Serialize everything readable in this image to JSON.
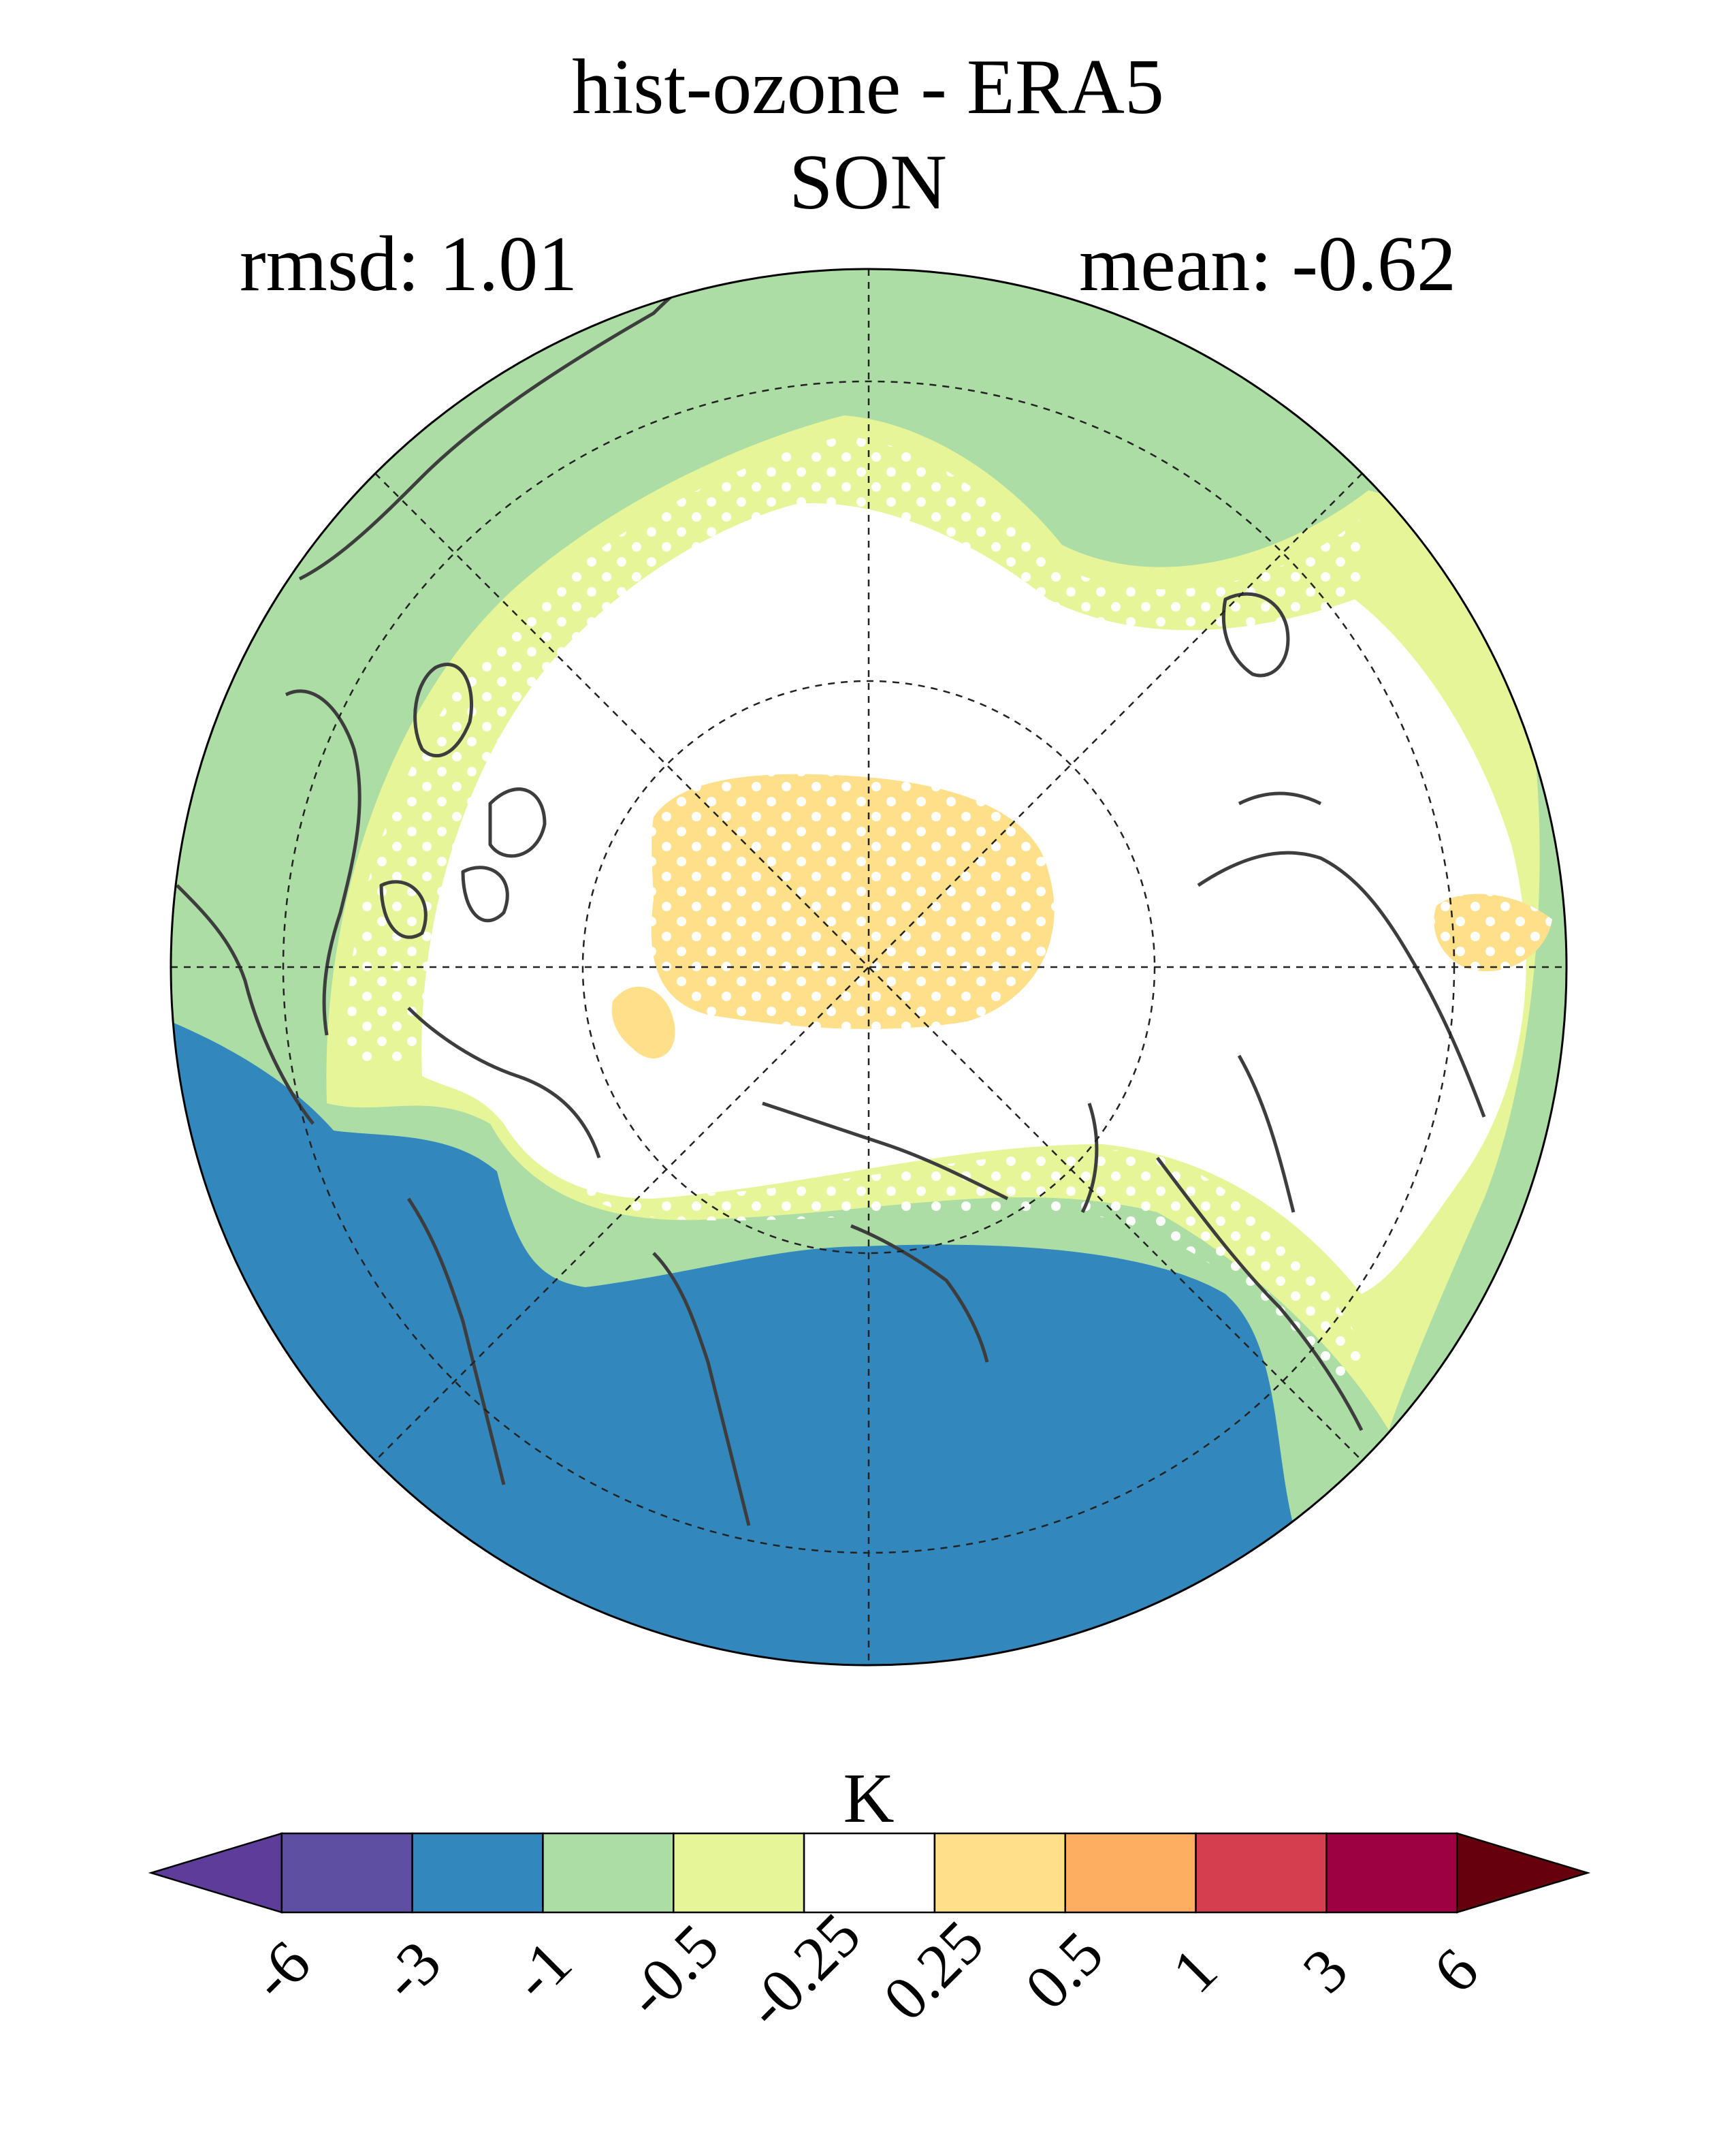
{
  "title": "hist-ozone - ERA5",
  "season": "SON",
  "stats": {
    "rmsd_label": "rmsd: 1.01",
    "mean_label": "mean: -0.62",
    "rmsd": 1.01,
    "mean": -0.62
  },
  "projection": "north-polar-stereographic",
  "units": "K",
  "colorbar": {
    "ticks": [
      "-6",
      "-3",
      "-1",
      "-0.5",
      "-0.25",
      "0.25",
      "0.5",
      "1",
      "3",
      "6"
    ],
    "colors": [
      "#5e3c99",
      "#5e4fa2",
      "#3288bd",
      "#abdda4",
      "#e6f598",
      "#ffffff",
      "#fee08b",
      "#fdae61",
      "#d53e4f",
      "#9e0142",
      "#67000d"
    ],
    "extend": "both"
  },
  "legend": {
    "stipple_meaning": "significant"
  }
}
